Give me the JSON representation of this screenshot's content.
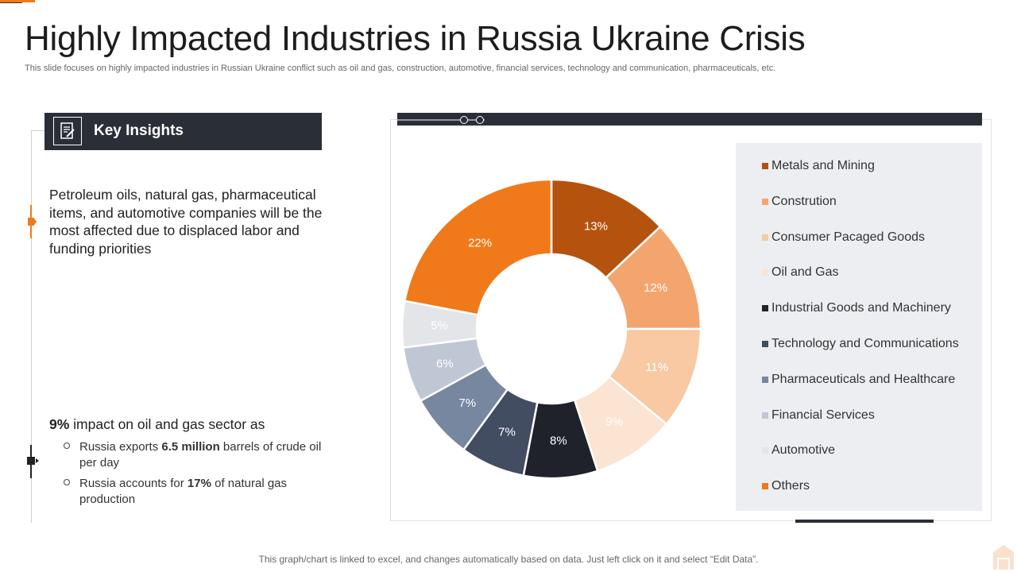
{
  "header": {
    "title": "Highly Impacted Industries in Russia Ukraine Crisis",
    "subtitle": "This slide focuses on highly impacted industries in Russian Ukraine conflict such as oil and gas, construction, automotive, financial services, technology and communication, pharmaceuticals, etc."
  },
  "insights": {
    "header_label": "Key Insights",
    "paragraph": "Petroleum oils, natural gas, pharmaceutical items, and automotive companies will be the most affected due to displaced labor and funding priorities",
    "stat_value": "9%",
    "stat_text": " impact on oil and gas sector as",
    "bullets": [
      {
        "pre": "Russia exports ",
        "bold": "6.5 million",
        "post": " barrels of crude oil per day"
      },
      {
        "pre": "Russia accounts for ",
        "bold": "17%",
        "post": " of natural gas production"
      }
    ]
  },
  "chart_data": {
    "type": "pie",
    "style": "donut",
    "categories": [
      "Metals and Mining",
      "Constrution",
      "Consumer Pacaged Goods",
      "Oil and Gas",
      "Industrial Goods and Machinery",
      "Technology and Communications",
      "Pharmaceuticals and Healthcare",
      "Financial Services",
      "Automotive",
      "Others"
    ],
    "values": [
      13,
      12,
      11,
      9,
      8,
      7,
      7,
      6,
      5,
      22
    ],
    "data_labels": [
      "13%",
      "12%",
      "11%",
      "9%",
      "8%",
      "7%",
      "7%",
      "6%",
      "5%",
      "22%"
    ],
    "colors": [
      "#b5520e",
      "#f4a56e",
      "#f8c9a2",
      "#fce4d2",
      "#1f222a",
      "#434d61",
      "#7787a0",
      "#c0c7d4",
      "#e3e5e9",
      "#f07a1a"
    ],
    "label_colors": [
      "#ffffff",
      "#ffffff",
      "#ffffff",
      "#ffffff",
      "#ffffff",
      "#ffffff",
      "#ffffff",
      "#ffffff",
      "#ffffff",
      "#ffffff"
    ],
    "legend_position": "right"
  },
  "footer": {
    "note": "This graph/chart is linked to excel, and changes automatically based on data. Just left click on it and select “Edit Data”."
  },
  "icons": {
    "insight": "document-edit-icon",
    "logo": "brand-logo-icon"
  },
  "colors": {
    "accent": "#f07a1a",
    "dark": "#2a2f37"
  }
}
